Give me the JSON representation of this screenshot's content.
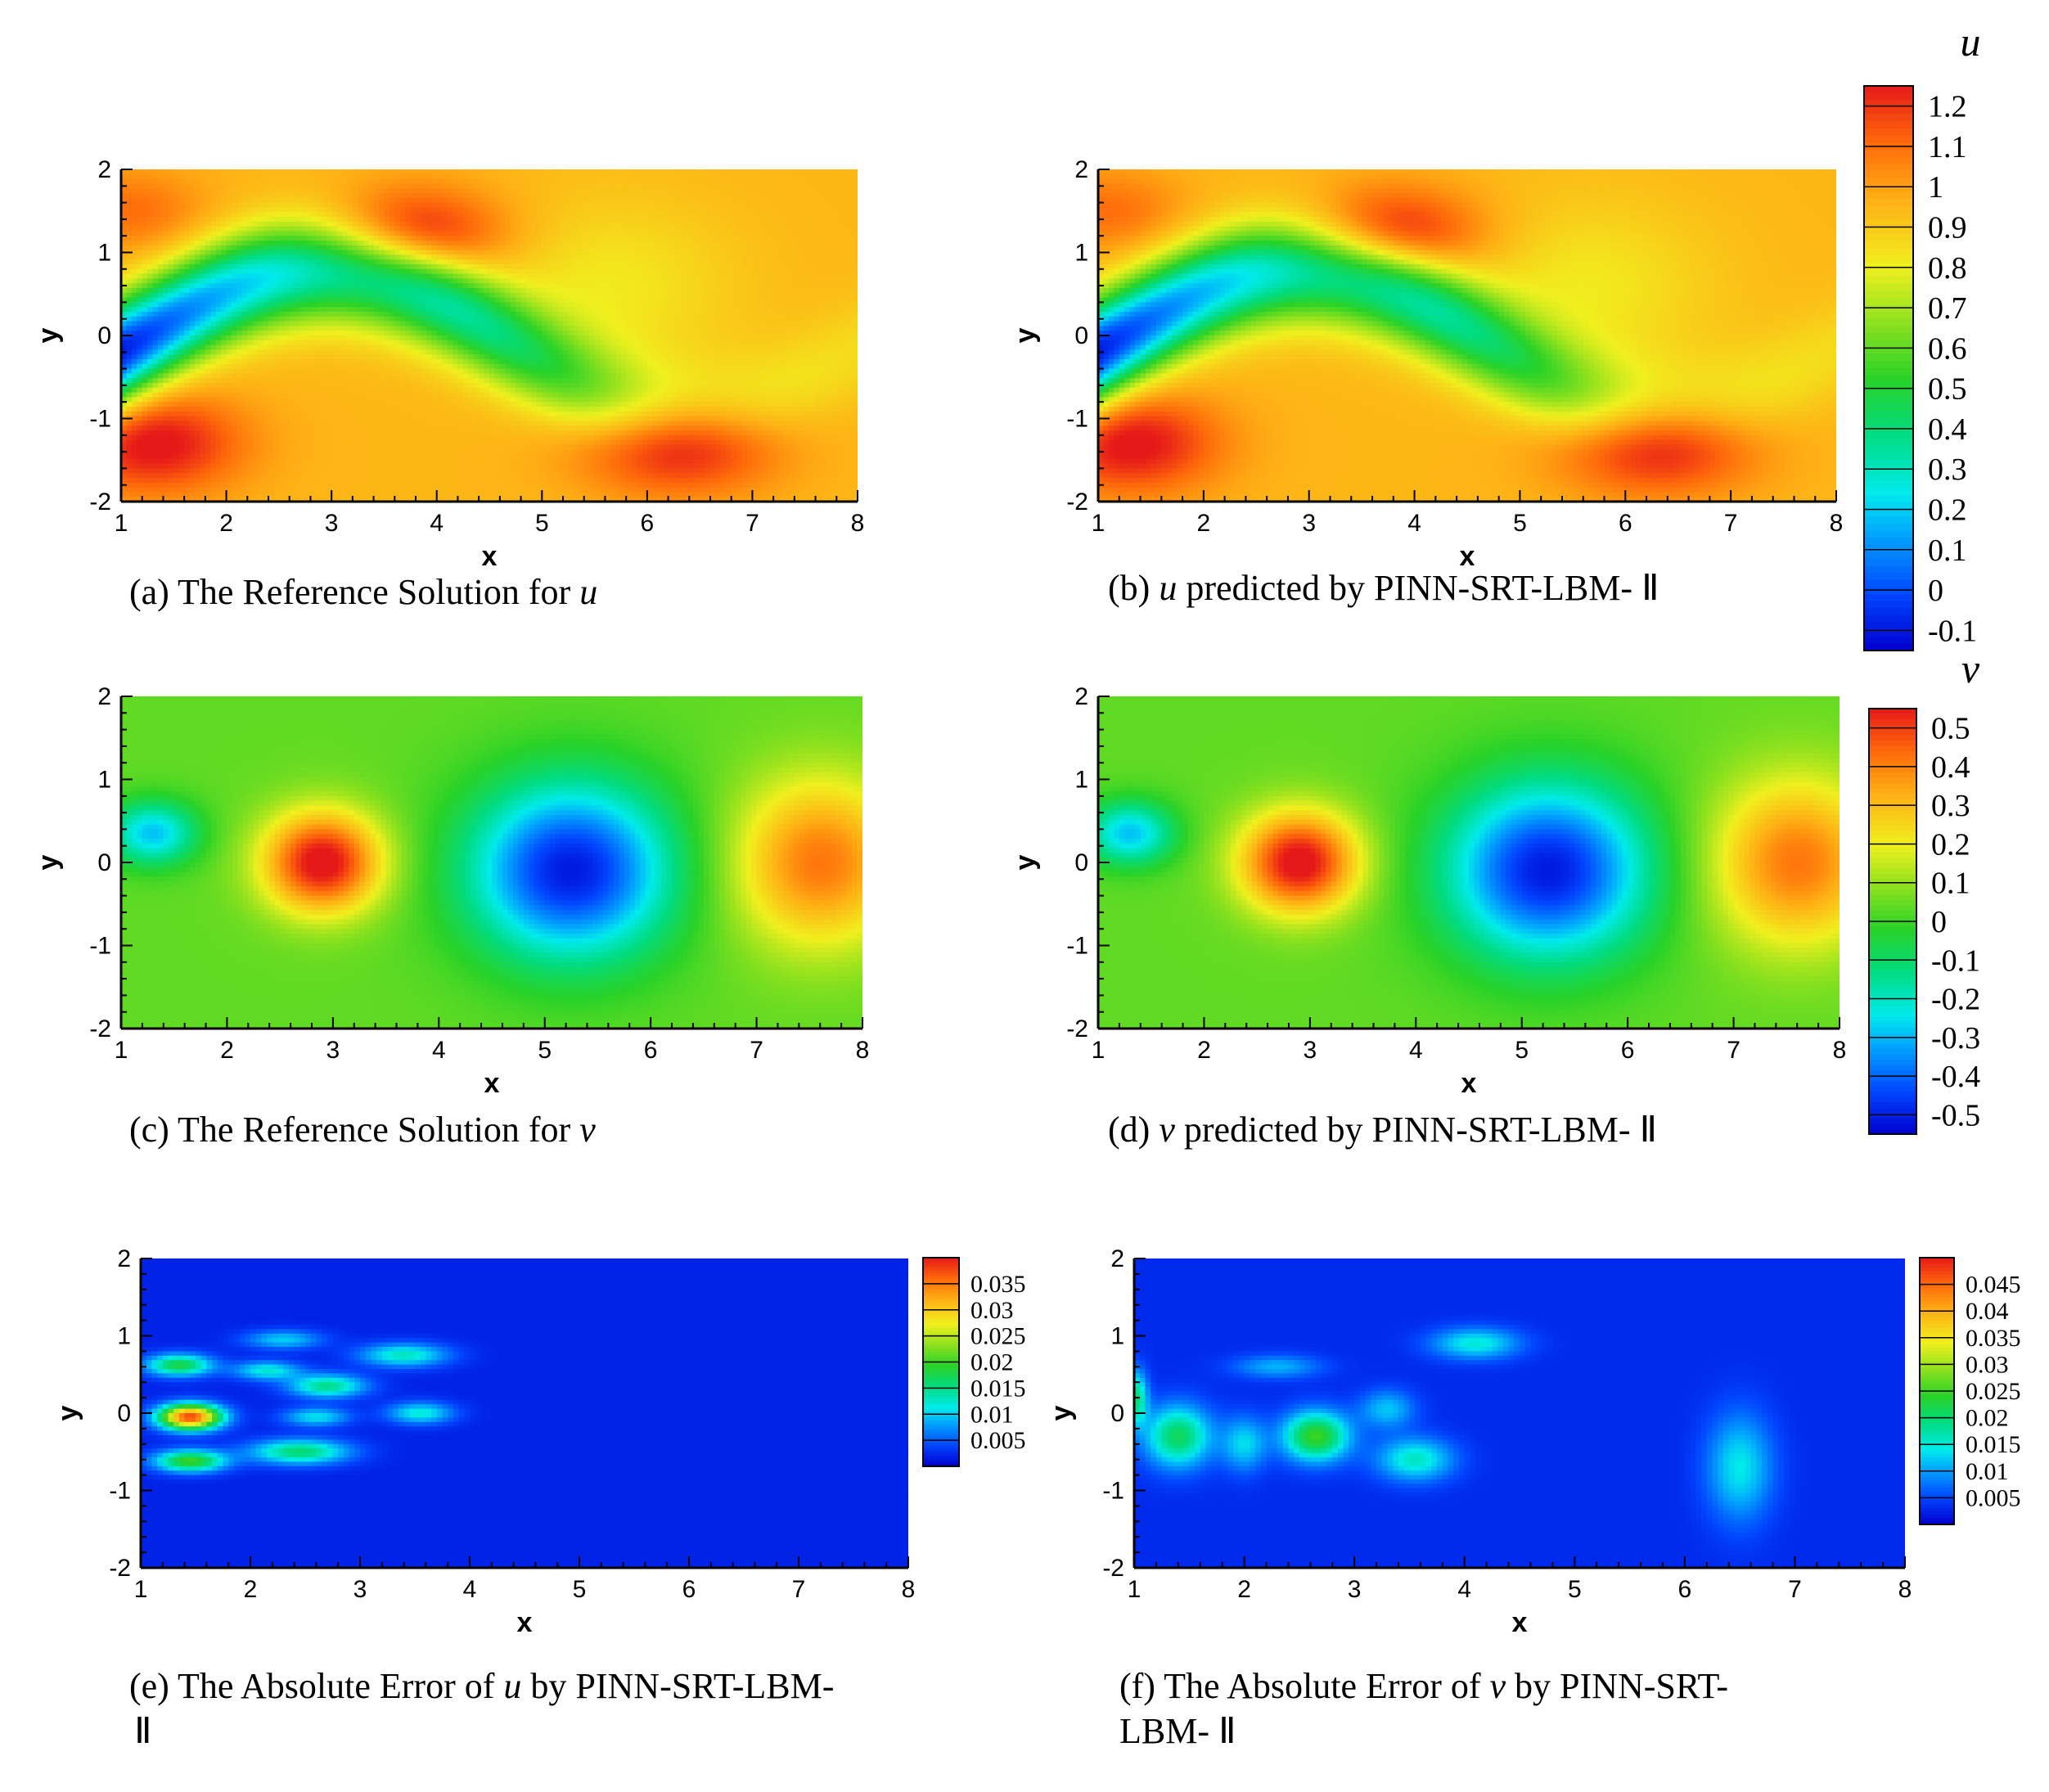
{
  "chart_data": [
    {
      "id": "a",
      "type": "heatmap",
      "field": "u",
      "palette": "rainbow",
      "caption_prefix": "(a) The Reference Solution for ",
      "caption_var": "u",
      "caption_suffix": "",
      "caption_line2": "",
      "xlabel": "x",
      "ylabel": "y",
      "xlim": [
        1,
        8
      ],
      "ylim": [
        -2,
        2
      ],
      "xticks": [
        1,
        2,
        3,
        4,
        5,
        6,
        7,
        8
      ],
      "yticks": [
        -2,
        -1,
        0,
        1,
        2
      ],
      "value_range": [
        -0.15,
        1.25
      ]
    },
    {
      "id": "b",
      "type": "heatmap",
      "field": "u",
      "palette": "rainbow",
      "caption_prefix": "(b) ",
      "caption_var": "u",
      "caption_suffix": " predicted by PINN-SRT-LBM- Ⅱ",
      "caption_line2": "",
      "xlabel": "x",
      "ylabel": "y",
      "xlim": [
        1,
        8
      ],
      "ylim": [
        -2,
        2
      ],
      "xticks": [
        1,
        2,
        3,
        4,
        5,
        6,
        7,
        8
      ],
      "yticks": [
        -2,
        -1,
        0,
        1,
        2
      ],
      "value_range": [
        -0.15,
        1.25
      ]
    },
    {
      "id": "c",
      "type": "heatmap",
      "field": "v",
      "palette": "rainbow",
      "caption_prefix": "(c) The Reference Solution for ",
      "caption_var": "v",
      "caption_suffix": "",
      "caption_line2": "",
      "xlabel": "x",
      "ylabel": "y",
      "xlim": [
        1,
        8
      ],
      "ylim": [
        -2,
        2
      ],
      "xticks": [
        1,
        2,
        3,
        4,
        5,
        6,
        7,
        8
      ],
      "yticks": [
        -2,
        -1,
        0,
        1,
        2
      ],
      "value_range": [
        -0.55,
        0.55
      ]
    },
    {
      "id": "d",
      "type": "heatmap",
      "field": "v",
      "palette": "rainbow",
      "caption_prefix": "(d) ",
      "caption_var": "v",
      "caption_suffix": " predicted by PINN-SRT-LBM- Ⅱ",
      "caption_line2": "",
      "xlabel": "x",
      "ylabel": "y",
      "xlim": [
        1,
        8
      ],
      "ylim": [
        -2,
        2
      ],
      "xticks": [
        1,
        2,
        3,
        4,
        5,
        6,
        7,
        8
      ],
      "yticks": [
        -2,
        -1,
        0,
        1,
        2
      ],
      "value_range": [
        -0.55,
        0.55
      ]
    },
    {
      "id": "e",
      "type": "heatmap",
      "field": "u-error",
      "palette": "rainbow",
      "caption_prefix": "(e) The Absolute Error of ",
      "caption_var": "u",
      "caption_suffix": " by PINN-SRT-LBM-",
      "caption_line2": "Ⅱ",
      "xlabel": "x",
      "ylabel": "y",
      "xlim": [
        1,
        8
      ],
      "ylim": [
        -2,
        2
      ],
      "xticks": [
        1,
        2,
        3,
        4,
        5,
        6,
        7,
        8
      ],
      "yticks": [
        -2,
        -1,
        0,
        1,
        2
      ],
      "value_range": [
        0,
        0.04
      ]
    },
    {
      "id": "f",
      "type": "heatmap",
      "field": "v-error",
      "palette": "rainbow",
      "caption_prefix": "(f) The Absolute Error of ",
      "caption_var": "v",
      "caption_suffix": " by PINN-SRT-",
      "caption_line2": "LBM- Ⅱ",
      "xlabel": "x",
      "ylabel": "y",
      "xlim": [
        1,
        8
      ],
      "ylim": [
        -2,
        2
      ],
      "xticks": [
        1,
        2,
        3,
        4,
        5,
        6,
        7,
        8
      ],
      "yticks": [
        -2,
        -1,
        0,
        1,
        2
      ],
      "value_range": [
        0,
        0.05
      ]
    }
  ],
  "colorbars": [
    {
      "id": "cb-u",
      "title": "u",
      "range": [
        -0.15,
        1.25
      ],
      "levels": [
        -0.1,
        0,
        0.1,
        0.2,
        0.3,
        0.4,
        0.5,
        0.6,
        0.7,
        0.8,
        0.9,
        1,
        1.1,
        1.2
      ],
      "labels": [
        "-0.1",
        "0",
        "0.1",
        "0.2",
        "0.3",
        "0.4",
        "0.5",
        "0.6",
        "0.7",
        "0.8",
        "0.9",
        "1",
        "1.1",
        "1.2"
      ]
    },
    {
      "id": "cb-v",
      "title": "v",
      "range": [
        -0.55,
        0.55
      ],
      "levels": [
        -0.5,
        -0.4,
        -0.3,
        -0.2,
        -0.1,
        0,
        0.1,
        0.2,
        0.3,
        0.4,
        0.5
      ],
      "labels": [
        "-0.5",
        "-0.4",
        "-0.3",
        "-0.2",
        "-0.1",
        "0",
        "0.1",
        "0.2",
        "0.3",
        "0.4",
        "0.5"
      ]
    },
    {
      "id": "cb-e",
      "title": "",
      "range": [
        0,
        0.04
      ],
      "levels": [
        0.005,
        0.01,
        0.015,
        0.02,
        0.025,
        0.03,
        0.035
      ],
      "labels": [
        "0.005",
        "0.01",
        "0.015",
        "0.02",
        "0.025",
        "0.03",
        "0.035"
      ]
    },
    {
      "id": "cb-f",
      "title": "",
      "range": [
        0,
        0.05
      ],
      "levels": [
        0.005,
        0.01,
        0.015,
        0.02,
        0.025,
        0.03,
        0.035,
        0.04,
        0.045
      ],
      "labels": [
        "0.005",
        "0.01",
        "0.015",
        "0.02",
        "0.025",
        "0.03",
        "0.035",
        "0.04",
        "0.045"
      ]
    }
  ]
}
